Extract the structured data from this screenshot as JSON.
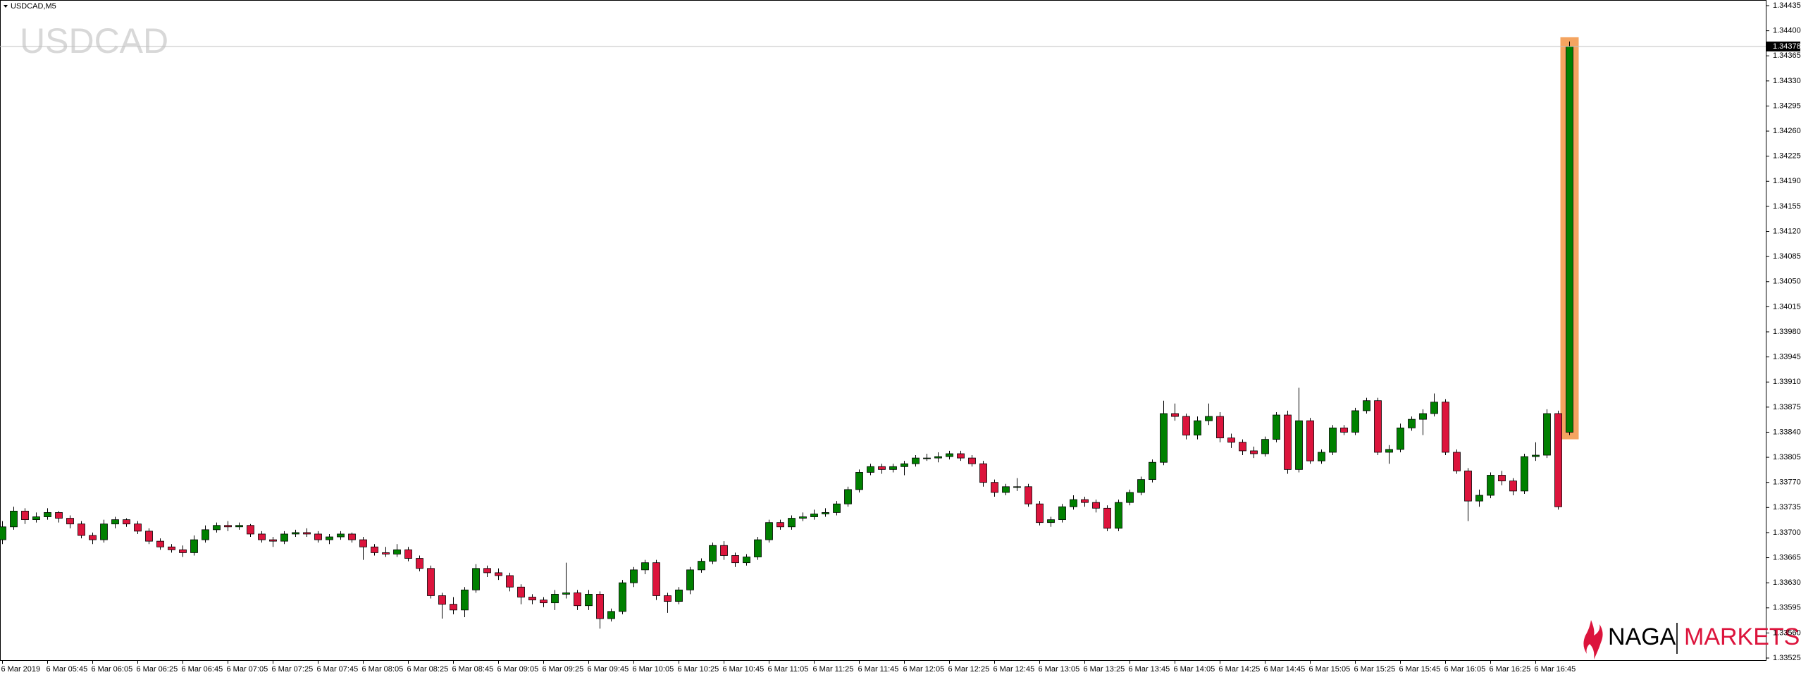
{
  "chart_data": {
    "type": "candlestick",
    "title": "USDCAD,M5",
    "watermark": "USDCAD",
    "up_color": "#008000",
    "down_color": "#dc143c",
    "highlight_color": "#f4a460",
    "ylim": [
      1.33525,
      1.34435
    ],
    "yticks": [
      1.33525,
      {
        "value": 1.3356,
        "label": "1.33560"
      },
      1.33595,
      {
        "value": 1.3363,
        "label": "1.33630"
      },
      1.33665,
      {
        "value": 1.337,
        "label": "1.33700"
      },
      1.33735,
      {
        "value": 1.3377,
        "label": "1.33770"
      },
      1.33805,
      {
        "value": 1.3384,
        "label": "1.33840"
      },
      1.33875,
      {
        "value": 1.3391,
        "label": "1.33910"
      },
      1.33945,
      {
        "value": 1.3398,
        "label": "1.33980"
      },
      1.34015,
      {
        "value": 1.3405,
        "label": "1.34050"
      },
      1.34085,
      {
        "value": 1.3412,
        "label": "1.34120"
      },
      1.34155,
      {
        "value": 1.3419,
        "label": "1.34190"
      },
      1.34225,
      {
        "value": 1.3426,
        "label": "1.34260"
      },
      1.34295,
      {
        "value": 1.3433,
        "label": "1.34330"
      },
      1.34365,
      {
        "value": 1.344,
        "label": "1.34400"
      },
      1.34435
    ],
    "last_price": 1.34378,
    "categories": [
      "6 Mar 2019",
      null,
      null,
      null,
      "6 Mar 05:45",
      null,
      null,
      null,
      "6 Mar 06:05",
      null,
      null,
      null,
      "6 Mar 06:25",
      null,
      null,
      null,
      "6 Mar 06:45",
      null,
      null,
      null,
      "6 Mar 07:05",
      null,
      null,
      null,
      "6 Mar 07:25",
      null,
      null,
      null,
      "6 Mar 07:45",
      null,
      null,
      null,
      "6 Mar 08:05",
      null,
      null,
      null,
      "6 Mar 08:25",
      null,
      null,
      null,
      "6 Mar 08:45",
      null,
      null,
      null,
      "6 Mar 09:05",
      null,
      null,
      null,
      "6 Mar 09:25",
      null,
      null,
      null,
      "6 Mar 09:45",
      null,
      null,
      null,
      "6 Mar 10:05",
      null,
      null,
      null,
      "6 Mar 10:25",
      null,
      null,
      null,
      "6 Mar 10:45",
      null,
      null,
      null,
      "6 Mar 11:05",
      null,
      null,
      null,
      "6 Mar 11:25",
      null,
      null,
      null,
      "6 Mar 11:45",
      null,
      null,
      null,
      "6 Mar 12:05",
      null,
      null,
      null,
      "6 Mar 12:25",
      null,
      null,
      null,
      "6 Mar 12:45",
      null,
      null,
      null,
      "6 Mar 13:05",
      null,
      null,
      null,
      "6 Mar 13:25",
      null,
      null,
      null,
      "6 Mar 13:45",
      null,
      null,
      null,
      "6 Mar 14:05",
      null,
      null,
      null,
      "6 Mar 14:25",
      null,
      null,
      null,
      "6 Mar 14:45",
      null,
      null,
      null,
      "6 Mar 15:05",
      null,
      null,
      null,
      "6 Mar 15:25",
      null,
      null,
      null,
      "6 Mar 15:45",
      null,
      null,
      null,
      "6 Mar 16:05",
      null,
      null,
      null,
      "6 Mar 16:25",
      null,
      null,
      null,
      "6 Mar 16:45",
      null,
      null,
      null
    ],
    "ohlc": [
      [
        1.3369,
        1.33716,
        1.33684,
        1.33708
      ],
      [
        1.33708,
        1.33736,
        1.33704,
        1.3373
      ],
      [
        1.3373,
        1.33734,
        1.33712,
        1.33718
      ],
      [
        1.33718,
        1.33728,
        1.33714,
        1.33722
      ],
      [
        1.33722,
        1.33734,
        1.33718,
        1.33728
      ],
      [
        1.33728,
        1.3373,
        1.33714,
        1.3372
      ],
      [
        1.3372,
        1.33724,
        1.33706,
        1.33712
      ],
      [
        1.33712,
        1.33716,
        1.33692,
        1.33696
      ],
      [
        1.33696,
        1.337,
        1.33684,
        1.3369
      ],
      [
        1.3369,
        1.33718,
        1.33686,
        1.33712
      ],
      [
        1.33712,
        1.33722,
        1.33706,
        1.33718
      ],
      [
        1.33718,
        1.3372,
        1.33708,
        1.33712
      ],
      [
        1.33712,
        1.33716,
        1.33698,
        1.33702
      ],
      [
        1.33702,
        1.33706,
        1.33684,
        1.33688
      ],
      [
        1.33688,
        1.33692,
        1.33676,
        1.3368
      ],
      [
        1.3368,
        1.33684,
        1.33672,
        1.33676
      ],
      [
        1.33676,
        1.33682,
        1.33666,
        1.33672
      ],
      [
        1.33672,
        1.33696,
        1.33668,
        1.3369
      ],
      [
        1.3369,
        1.3371,
        1.33686,
        1.33704
      ],
      [
        1.33704,
        1.33714,
        1.337,
        1.3371
      ],
      [
        1.3371,
        1.33716,
        1.33702,
        1.33708
      ],
      [
        1.33708,
        1.33714,
        1.33704,
        1.3371
      ],
      [
        1.3371,
        1.33712,
        1.33694,
        1.33698
      ],
      [
        1.33698,
        1.33702,
        1.33686,
        1.3369
      ],
      [
        1.3369,
        1.33694,
        1.3368,
        1.33688
      ],
      [
        1.33688,
        1.33702,
        1.33684,
        1.33698
      ],
      [
        1.33698,
        1.33704,
        1.33694,
        1.337
      ],
      [
        1.337,
        1.33706,
        1.33694,
        1.33698
      ],
      [
        1.33698,
        1.33702,
        1.33686,
        1.3369
      ],
      [
        1.3369,
        1.33698,
        1.33684,
        1.33694
      ],
      [
        1.33694,
        1.33702,
        1.3369,
        1.33698
      ],
      [
        1.33698,
        1.337,
        1.33686,
        1.3369
      ],
      [
        1.3369,
        1.33694,
        1.33662,
        1.3368
      ],
      [
        1.3368,
        1.33684,
        1.33668,
        1.33672
      ],
      [
        1.33672,
        1.3368,
        1.33666,
        1.3367
      ],
      [
        1.3367,
        1.33684,
        1.33666,
        1.33676
      ],
      [
        1.33676,
        1.3368,
        1.3366,
        1.33664
      ],
      [
        1.33664,
        1.33668,
        1.33646,
        1.3365
      ],
      [
        1.3365,
        1.33654,
        1.33608,
        1.33612
      ],
      [
        1.33612,
        1.33616,
        1.3358,
        1.336
      ],
      [
        1.336,
        1.3361,
        1.33586,
        1.33592
      ],
      [
        1.33592,
        1.33624,
        1.33582,
        1.3362
      ],
      [
        1.3362,
        1.33656,
        1.33616,
        1.3365
      ],
      [
        1.3365,
        1.33654,
        1.33638,
        1.33644
      ],
      [
        1.33644,
        1.3365,
        1.33634,
        1.3364
      ],
      [
        1.3364,
        1.33644,
        1.33618,
        1.33624
      ],
      [
        1.33624,
        1.33628,
        1.336,
        1.3361
      ],
      [
        1.3361,
        1.33614,
        1.336,
        1.33606
      ],
      [
        1.33606,
        1.3361,
        1.33596,
        1.33602
      ],
      [
        1.33602,
        1.3362,
        1.33592,
        1.33614
      ],
      [
        1.33614,
        1.33658,
        1.33608,
        1.33616
      ],
      [
        1.33616,
        1.3362,
        1.33592,
        1.33598
      ],
      [
        1.33598,
        1.3362,
        1.33592,
        1.33614
      ],
      [
        1.33614,
        1.33618,
        1.33566,
        1.3358
      ],
      [
        1.3358,
        1.33594,
        1.33576,
        1.3359
      ],
      [
        1.3359,
        1.33634,
        1.33586,
        1.3363
      ],
      [
        1.3363,
        1.33652,
        1.33624,
        1.33648
      ],
      [
        1.33648,
        1.33662,
        1.33642,
        1.33658
      ],
      [
        1.33658,
        1.33662,
        1.33606,
        1.33612
      ],
      [
        1.33612,
        1.33616,
        1.33588,
        1.33604
      ],
      [
        1.33604,
        1.33624,
        1.336,
        1.3362
      ],
      [
        1.3362,
        1.33652,
        1.33614,
        1.33648
      ],
      [
        1.33648,
        1.33664,
        1.33644,
        1.3366
      ],
      [
        1.3366,
        1.33686,
        1.33656,
        1.33682
      ],
      [
        1.33682,
        1.33688,
        1.33662,
        1.33668
      ],
      [
        1.33668,
        1.33672,
        1.33652,
        1.33658
      ],
      [
        1.33658,
        1.3367,
        1.33654,
        1.33666
      ],
      [
        1.33666,
        1.33694,
        1.33662,
        1.3369
      ],
      [
        1.3369,
        1.33718,
        1.33686,
        1.33714
      ],
      [
        1.33714,
        1.33718,
        1.33704,
        1.33708
      ],
      [
        1.33708,
        1.33724,
        1.33704,
        1.3372
      ],
      [
        1.3372,
        1.33728,
        1.33716,
        1.33722
      ],
      [
        1.33722,
        1.33732,
        1.33718,
        1.33726
      ],
      [
        1.33726,
        1.33734,
        1.33722,
        1.33728
      ],
      [
        1.33728,
        1.33744,
        1.33724,
        1.3374
      ],
      [
        1.3374,
        1.33764,
        1.33736,
        1.3376
      ],
      [
        1.3376,
        1.33788,
        1.33756,
        1.33784
      ],
      [
        1.33784,
        1.33796,
        1.3378,
        1.33792
      ],
      [
        1.33792,
        1.33796,
        1.33782,
        1.33788
      ],
      [
        1.33788,
        1.33796,
        1.33784,
        1.33792
      ],
      [
        1.33792,
        1.338,
        1.3378,
        1.33796
      ],
      [
        1.33796,
        1.33808,
        1.33792,
        1.33804
      ],
      [
        1.33804,
        1.3381,
        1.338,
        1.33804
      ],
      [
        1.33804,
        1.33812,
        1.33798,
        1.33806
      ],
      [
        1.33806,
        1.33814,
        1.33802,
        1.3381
      ],
      [
        1.3381,
        1.33814,
        1.338,
        1.33804
      ],
      [
        1.33804,
        1.33808,
        1.33792,
        1.33796
      ],
      [
        1.33796,
        1.338,
        1.33764,
        1.3377
      ],
      [
        1.3377,
        1.33774,
        1.3375,
        1.33756
      ],
      [
        1.33756,
        1.33768,
        1.33752,
        1.33764
      ],
      [
        1.33764,
        1.33776,
        1.33758,
        1.33764
      ],
      [
        1.33764,
        1.33768,
        1.33736,
        1.3374
      ],
      [
        1.3374,
        1.33744,
        1.3371,
        1.33714
      ],
      [
        1.33714,
        1.33722,
        1.33708,
        1.33718
      ],
      [
        1.33718,
        1.3374,
        1.33714,
        1.33736
      ],
      [
        1.33736,
        1.33752,
        1.33732,
        1.33746
      ],
      [
        1.33746,
        1.3375,
        1.33736,
        1.33742
      ],
      [
        1.33742,
        1.33746,
        1.33728,
        1.33734
      ],
      [
        1.33734,
        1.33738,
        1.33702,
        1.33706
      ],
      [
        1.33706,
        1.33746,
        1.33702,
        1.33742
      ],
      [
        1.33742,
        1.3376,
        1.33738,
        1.33756
      ],
      [
        1.33756,
        1.33778,
        1.33752,
        1.33774
      ],
      [
        1.33774,
        1.33802,
        1.3377,
        1.33798
      ],
      [
        1.33798,
        1.33884,
        1.33794,
        1.33866
      ],
      [
        1.33866,
        1.3388,
        1.33856,
        1.33862
      ],
      [
        1.33862,
        1.33866,
        1.3383,
        1.33836
      ],
      [
        1.33836,
        1.33862,
        1.3383,
        1.33856
      ],
      [
        1.33856,
        1.3388,
        1.3385,
        1.33862
      ],
      [
        1.33862,
        1.33868,
        1.33826,
        1.33832
      ],
      [
        1.33832,
        1.33838,
        1.33818,
        1.33826
      ],
      [
        1.33826,
        1.3383,
        1.33808,
        1.33814
      ],
      [
        1.33814,
        1.3382,
        1.33804,
        1.3381
      ],
      [
        1.3381,
        1.33834,
        1.33806,
        1.3383
      ],
      [
        1.3383,
        1.33868,
        1.33826,
        1.33864
      ],
      [
        1.33864,
        1.3387,
        1.33782,
        1.33788
      ],
      [
        1.33788,
        1.33902,
        1.33784,
        1.33856
      ],
      [
        1.33856,
        1.3386,
        1.33796,
        1.338
      ],
      [
        1.338,
        1.33816,
        1.33796,
        1.33812
      ],
      [
        1.33812,
        1.3385,
        1.33808,
        1.33846
      ],
      [
        1.33846,
        1.3385,
        1.33836,
        1.3384
      ],
      [
        1.3384,
        1.33874,
        1.33836,
        1.3387
      ],
      [
        1.3387,
        1.33888,
        1.33866,
        1.33884
      ],
      [
        1.33884,
        1.33888,
        1.33808,
        1.33812
      ],
      [
        1.33812,
        1.33822,
        1.33796,
        1.33816
      ],
      [
        1.33816,
        1.33852,
        1.33812,
        1.33846
      ],
      [
        1.33846,
        1.33862,
        1.33842,
        1.33858
      ],
      [
        1.33858,
        1.33872,
        1.33836,
        1.33866
      ],
      [
        1.33866,
        1.33894,
        1.33862,
        1.33882
      ],
      [
        1.33882,
        1.33886,
        1.33808,
        1.33812
      ],
      [
        1.33812,
        1.33816,
        1.33782,
        1.33786
      ],
      [
        1.33786,
        1.3379,
        1.33716,
        1.33744
      ],
      [
        1.33744,
        1.3376,
        1.33736,
        1.33752
      ],
      [
        1.33752,
        1.33784,
        1.33748,
        1.3378
      ],
      [
        1.3378,
        1.33786,
        1.33766,
        1.33772
      ],
      [
        1.33772,
        1.33776,
        1.33752,
        1.33758
      ],
      [
        1.33758,
        1.3381,
        1.33754,
        1.33806
      ],
      [
        1.33806,
        1.33826,
        1.338,
        1.33808
      ],
      [
        1.33808,
        1.33872,
        1.33804,
        1.33866
      ],
      [
        1.33866,
        1.3387,
        1.33732,
        1.33736
      ],
      [
        1.3384,
        1.34385,
        1.33836,
        1.34378
      ]
    ]
  },
  "logo": {
    "left": "NAGA",
    "right": "MARKETS"
  }
}
